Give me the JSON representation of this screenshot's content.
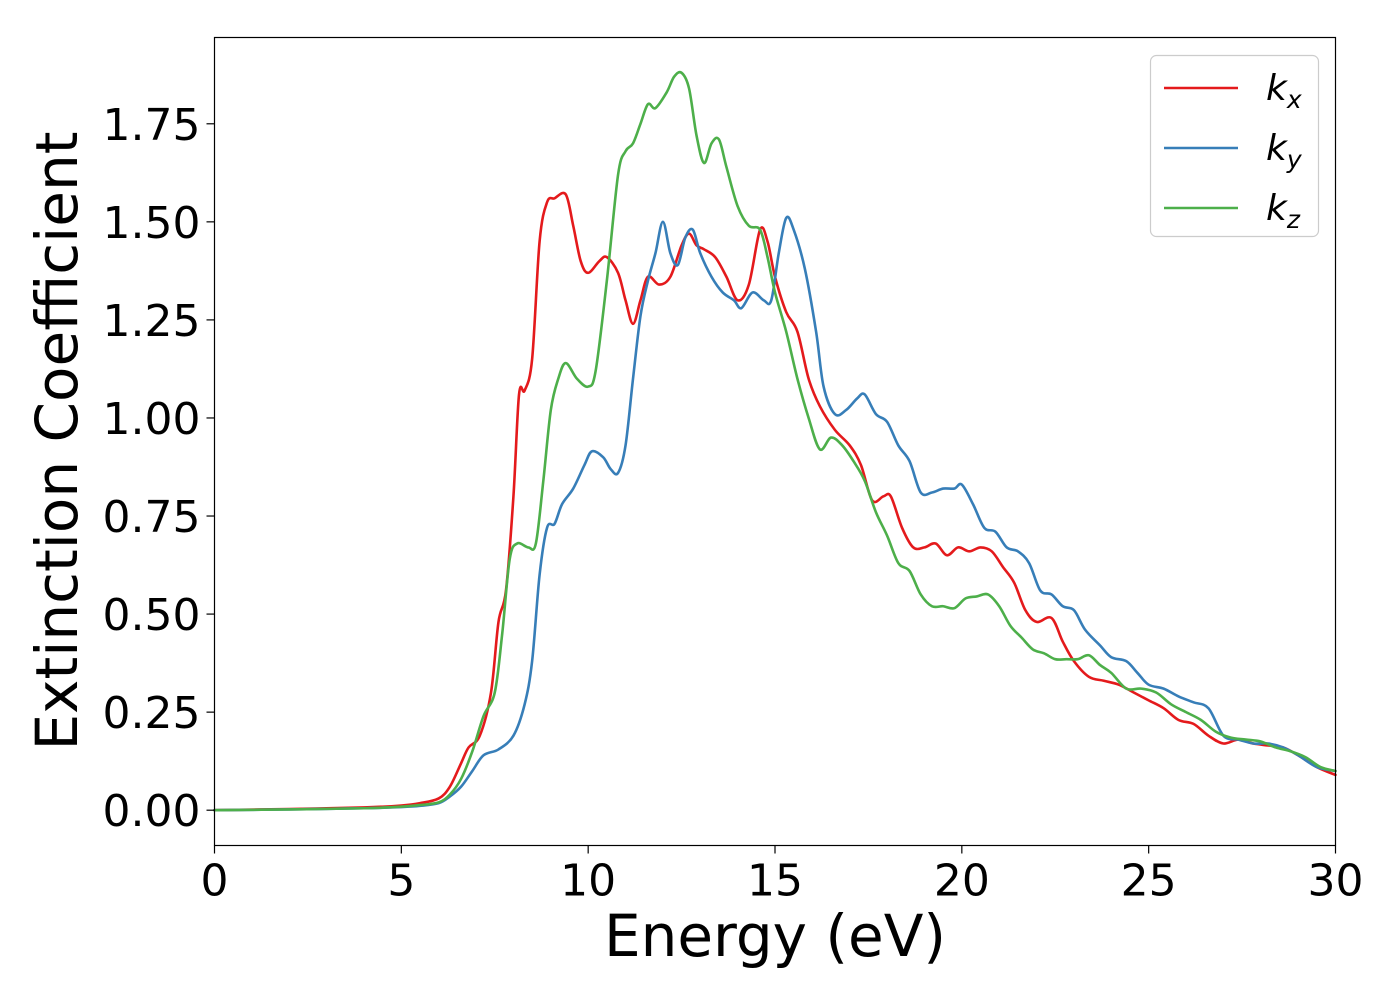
{
  "chart_data": {
    "type": "line",
    "title": "",
    "xlabel": "Energy (eV)",
    "ylabel": "Extinction Coefficient",
    "xlim": [
      0,
      30
    ],
    "ylim": [
      -0.09,
      1.97
    ],
    "xticks": [
      0,
      5,
      10,
      15,
      20,
      25,
      30
    ],
    "xtick_labels": [
      "0",
      "5",
      "10",
      "15",
      "20",
      "25",
      "30"
    ],
    "yticks": [
      0,
      0.25,
      0.5,
      0.75,
      1.0,
      1.25,
      1.5,
      1.75
    ],
    "ytick_labels": [
      "0.00",
      "0.25",
      "0.50",
      "0.75",
      "1.00",
      "1.25",
      "1.50",
      "1.75"
    ],
    "grid": false,
    "legend_position": "top-right",
    "series": [
      {
        "name": "k_x",
        "label_base": "k",
        "label_sub": "x",
        "color": "#e41a1c",
        "points": [
          [
            0,
            0
          ],
          [
            2,
            0.003
          ],
          [
            4,
            0.007
          ],
          [
            5,
            0.012
          ],
          [
            5.5,
            0.018
          ],
          [
            6,
            0.03
          ],
          [
            6.3,
            0.06
          ],
          [
            6.6,
            0.12
          ],
          [
            6.8,
            0.16
          ],
          [
            7.1,
            0.19
          ],
          [
            7.4,
            0.3
          ],
          [
            7.6,
            0.48
          ],
          [
            7.8,
            0.56
          ],
          [
            8.0,
            0.8
          ],
          [
            8.15,
            1.06
          ],
          [
            8.3,
            1.07
          ],
          [
            8.5,
            1.15
          ],
          [
            8.7,
            1.45
          ],
          [
            8.9,
            1.55
          ],
          [
            9.1,
            1.56
          ],
          [
            9.4,
            1.57
          ],
          [
            9.6,
            1.49
          ],
          [
            9.8,
            1.4
          ],
          [
            10.0,
            1.37
          ],
          [
            10.3,
            1.4
          ],
          [
            10.5,
            1.41
          ],
          [
            10.8,
            1.37
          ],
          [
            11.0,
            1.3
          ],
          [
            11.2,
            1.24
          ],
          [
            11.4,
            1.3
          ],
          [
            11.6,
            1.36
          ],
          [
            11.9,
            1.34
          ],
          [
            12.2,
            1.36
          ],
          [
            12.5,
            1.44
          ],
          [
            12.7,
            1.47
          ],
          [
            12.9,
            1.44
          ],
          [
            13.1,
            1.43
          ],
          [
            13.4,
            1.41
          ],
          [
            13.7,
            1.36
          ],
          [
            14.0,
            1.3
          ],
          [
            14.3,
            1.34
          ],
          [
            14.6,
            1.48
          ],
          [
            14.8,
            1.45
          ],
          [
            15.0,
            1.36
          ],
          [
            15.3,
            1.27
          ],
          [
            15.6,
            1.22
          ],
          [
            15.9,
            1.1
          ],
          [
            16.2,
            1.03
          ],
          [
            16.6,
            0.97
          ],
          [
            17.0,
            0.93
          ],
          [
            17.3,
            0.88
          ],
          [
            17.6,
            0.79
          ],
          [
            17.9,
            0.8
          ],
          [
            18.1,
            0.8
          ],
          [
            18.4,
            0.72
          ],
          [
            18.7,
            0.67
          ],
          [
            19.0,
            0.67
          ],
          [
            19.3,
            0.68
          ],
          [
            19.6,
            0.65
          ],
          [
            19.9,
            0.67
          ],
          [
            20.2,
            0.66
          ],
          [
            20.5,
            0.67
          ],
          [
            20.8,
            0.66
          ],
          [
            21.1,
            0.62
          ],
          [
            21.4,
            0.58
          ],
          [
            21.7,
            0.51
          ],
          [
            22.0,
            0.48
          ],
          [
            22.4,
            0.49
          ],
          [
            22.7,
            0.43
          ],
          [
            23.0,
            0.38
          ],
          [
            23.4,
            0.34
          ],
          [
            23.8,
            0.33
          ],
          [
            24.2,
            0.32
          ],
          [
            24.6,
            0.3
          ],
          [
            25.0,
            0.28
          ],
          [
            25.4,
            0.26
          ],
          [
            25.8,
            0.23
          ],
          [
            26.2,
            0.22
          ],
          [
            26.6,
            0.19
          ],
          [
            27.0,
            0.17
          ],
          [
            27.4,
            0.18
          ],
          [
            27.8,
            0.17
          ],
          [
            28.2,
            0.165
          ],
          [
            28.6,
            0.16
          ],
          [
            29.0,
            0.14
          ],
          [
            29.5,
            0.11
          ],
          [
            30,
            0.09
          ]
        ]
      },
      {
        "name": "k_y",
        "label_base": "k",
        "label_sub": "y",
        "color": "#377eb8",
        "points": [
          [
            0,
            0
          ],
          [
            2,
            0.002
          ],
          [
            4,
            0.005
          ],
          [
            5,
            0.008
          ],
          [
            5.5,
            0.011
          ],
          [
            6,
            0.018
          ],
          [
            6.3,
            0.035
          ],
          [
            6.6,
            0.06
          ],
          [
            6.9,
            0.1
          ],
          [
            7.2,
            0.14
          ],
          [
            7.6,
            0.155
          ],
          [
            8.0,
            0.19
          ],
          [
            8.3,
            0.27
          ],
          [
            8.5,
            0.38
          ],
          [
            8.7,
            0.6
          ],
          [
            8.9,
            0.72
          ],
          [
            9.1,
            0.73
          ],
          [
            9.3,
            0.78
          ],
          [
            9.6,
            0.82
          ],
          [
            9.9,
            0.88
          ],
          [
            10.1,
            0.915
          ],
          [
            10.4,
            0.9
          ],
          [
            10.6,
            0.87
          ],
          [
            10.8,
            0.86
          ],
          [
            11.0,
            0.93
          ],
          [
            11.2,
            1.1
          ],
          [
            11.4,
            1.26
          ],
          [
            11.6,
            1.35
          ],
          [
            11.8,
            1.42
          ],
          [
            12.0,
            1.5
          ],
          [
            12.2,
            1.42
          ],
          [
            12.4,
            1.39
          ],
          [
            12.6,
            1.46
          ],
          [
            12.8,
            1.48
          ],
          [
            13.0,
            1.42
          ],
          [
            13.3,
            1.36
          ],
          [
            13.6,
            1.32
          ],
          [
            13.9,
            1.3
          ],
          [
            14.1,
            1.28
          ],
          [
            14.4,
            1.32
          ],
          [
            14.7,
            1.3
          ],
          [
            14.9,
            1.3
          ],
          [
            15.1,
            1.42
          ],
          [
            15.3,
            1.51
          ],
          [
            15.5,
            1.48
          ],
          [
            15.8,
            1.38
          ],
          [
            16.1,
            1.22
          ],
          [
            16.3,
            1.08
          ],
          [
            16.6,
            1.01
          ],
          [
            16.9,
            1.02
          ],
          [
            17.2,
            1.05
          ],
          [
            17.4,
            1.06
          ],
          [
            17.7,
            1.01
          ],
          [
            18.0,
            0.99
          ],
          [
            18.3,
            0.93
          ],
          [
            18.6,
            0.89
          ],
          [
            18.9,
            0.81
          ],
          [
            19.2,
            0.81
          ],
          [
            19.5,
            0.82
          ],
          [
            19.8,
            0.82
          ],
          [
            20.0,
            0.83
          ],
          [
            20.3,
            0.78
          ],
          [
            20.6,
            0.72
          ],
          [
            20.9,
            0.71
          ],
          [
            21.2,
            0.67
          ],
          [
            21.5,
            0.66
          ],
          [
            21.8,
            0.63
          ],
          [
            22.1,
            0.56
          ],
          [
            22.4,
            0.55
          ],
          [
            22.7,
            0.52
          ],
          [
            23.0,
            0.51
          ],
          [
            23.3,
            0.46
          ],
          [
            23.7,
            0.42
          ],
          [
            24.0,
            0.39
          ],
          [
            24.4,
            0.38
          ],
          [
            24.7,
            0.35
          ],
          [
            25.0,
            0.32
          ],
          [
            25.4,
            0.31
          ],
          [
            25.8,
            0.29
          ],
          [
            26.2,
            0.275
          ],
          [
            26.6,
            0.26
          ],
          [
            27.0,
            0.19
          ],
          [
            27.4,
            0.18
          ],
          [
            27.8,
            0.17
          ],
          [
            28.2,
            0.17
          ],
          [
            28.6,
            0.16
          ],
          [
            29.0,
            0.14
          ],
          [
            29.5,
            0.11
          ],
          [
            30,
            0.1
          ]
        ]
      },
      {
        "name": "k_z",
        "label_base": "k",
        "label_sub": "z",
        "color": "#4daf4a",
        "points": [
          [
            0,
            0
          ],
          [
            2,
            0.002
          ],
          [
            4,
            0.005
          ],
          [
            5,
            0.009
          ],
          [
            5.5,
            0.013
          ],
          [
            6,
            0.02
          ],
          [
            6.3,
            0.04
          ],
          [
            6.6,
            0.08
          ],
          [
            6.9,
            0.15
          ],
          [
            7.2,
            0.24
          ],
          [
            7.5,
            0.3
          ],
          [
            7.7,
            0.45
          ],
          [
            7.9,
            0.64
          ],
          [
            8.1,
            0.68
          ],
          [
            8.4,
            0.67
          ],
          [
            8.6,
            0.68
          ],
          [
            8.8,
            0.84
          ],
          [
            9.0,
            1.02
          ],
          [
            9.2,
            1.1
          ],
          [
            9.4,
            1.14
          ],
          [
            9.7,
            1.1
          ],
          [
            10.0,
            1.08
          ],
          [
            10.2,
            1.12
          ],
          [
            10.5,
            1.35
          ],
          [
            10.8,
            1.62
          ],
          [
            11.0,
            1.68
          ],
          [
            11.2,
            1.7
          ],
          [
            11.4,
            1.75
          ],
          [
            11.6,
            1.8
          ],
          [
            11.8,
            1.79
          ],
          [
            12.1,
            1.83
          ],
          [
            12.3,
            1.87
          ],
          [
            12.5,
            1.88
          ],
          [
            12.7,
            1.84
          ],
          [
            12.9,
            1.72
          ],
          [
            13.1,
            1.65
          ],
          [
            13.3,
            1.7
          ],
          [
            13.5,
            1.71
          ],
          [
            13.7,
            1.64
          ],
          [
            14.0,
            1.54
          ],
          [
            14.3,
            1.49
          ],
          [
            14.6,
            1.48
          ],
          [
            14.8,
            1.41
          ],
          [
            15.0,
            1.32
          ],
          [
            15.3,
            1.22
          ],
          [
            15.6,
            1.1
          ],
          [
            15.9,
            1.0
          ],
          [
            16.2,
            0.92
          ],
          [
            16.5,
            0.95
          ],
          [
            16.8,
            0.93
          ],
          [
            17.1,
            0.89
          ],
          [
            17.4,
            0.84
          ],
          [
            17.7,
            0.76
          ],
          [
            18.0,
            0.7
          ],
          [
            18.3,
            0.63
          ],
          [
            18.6,
            0.61
          ],
          [
            18.9,
            0.55
          ],
          [
            19.2,
            0.52
          ],
          [
            19.5,
            0.52
          ],
          [
            19.8,
            0.515
          ],
          [
            20.1,
            0.54
          ],
          [
            20.4,
            0.545
          ],
          [
            20.7,
            0.55
          ],
          [
            21.0,
            0.52
          ],
          [
            21.3,
            0.47
          ],
          [
            21.6,
            0.44
          ],
          [
            21.9,
            0.41
          ],
          [
            22.2,
            0.4
          ],
          [
            22.5,
            0.385
          ],
          [
            22.8,
            0.385
          ],
          [
            23.1,
            0.385
          ],
          [
            23.4,
            0.395
          ],
          [
            23.7,
            0.37
          ],
          [
            24.0,
            0.35
          ],
          [
            24.4,
            0.31
          ],
          [
            24.8,
            0.31
          ],
          [
            25.2,
            0.3
          ],
          [
            25.6,
            0.27
          ],
          [
            26.0,
            0.25
          ],
          [
            26.4,
            0.23
          ],
          [
            26.8,
            0.2
          ],
          [
            27.2,
            0.185
          ],
          [
            27.6,
            0.18
          ],
          [
            28.0,
            0.175
          ],
          [
            28.4,
            0.16
          ],
          [
            28.8,
            0.15
          ],
          [
            29.2,
            0.135
          ],
          [
            29.6,
            0.11
          ],
          [
            30,
            0.1
          ]
        ]
      }
    ]
  }
}
